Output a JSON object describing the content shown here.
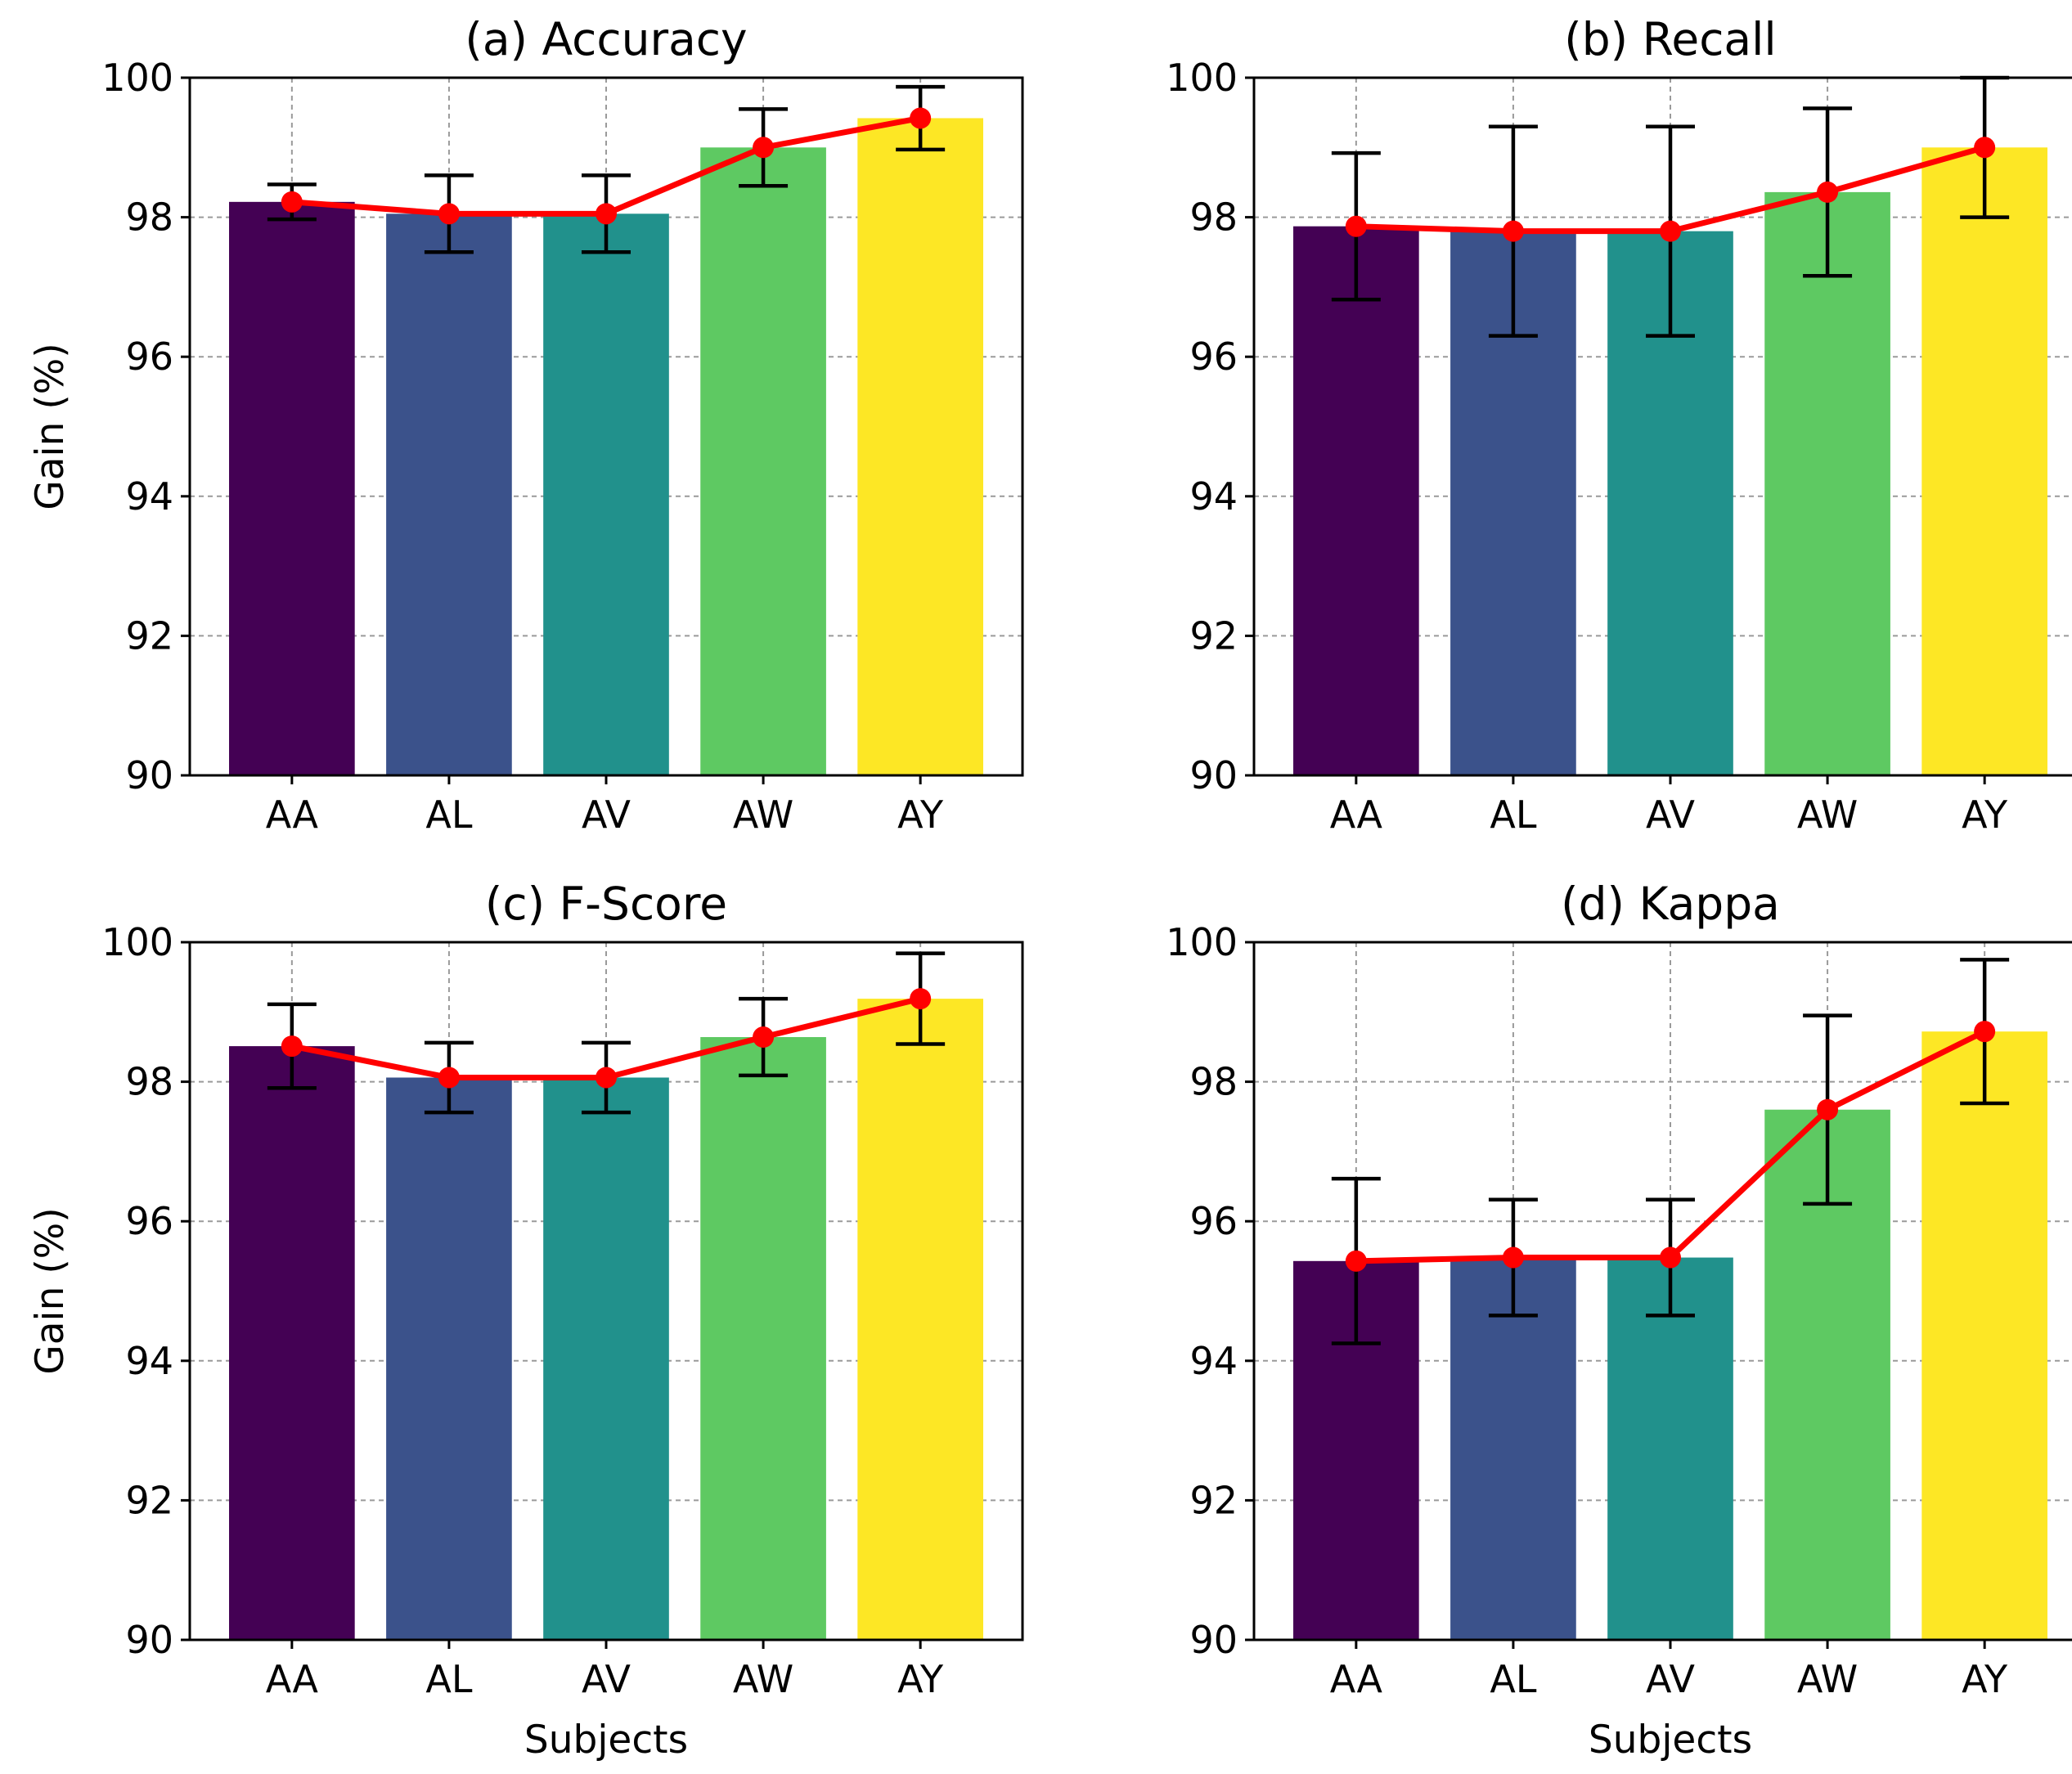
{
  "chart_data": [
    {
      "type": "bar",
      "title": "(a) Accuracy",
      "xlabel": "",
      "ylabel": "Gain (%)",
      "ylim": [
        90,
        100
      ],
      "yticks": [
        90,
        92,
        94,
        96,
        98,
        100
      ],
      "categories": [
        "AA",
        "AL",
        "AV",
        "AW",
        "AY"
      ],
      "values": [
        98.22,
        98.05,
        98.05,
        99.0,
        99.42
      ],
      "error": [
        0.25,
        0.55,
        0.55,
        0.55,
        0.45
      ],
      "grid": true
    },
    {
      "type": "bar",
      "title": "(b) Recall",
      "xlabel": "",
      "ylabel": "",
      "ylim": [
        90,
        100
      ],
      "yticks": [
        90,
        92,
        94,
        96,
        98,
        100
      ],
      "categories": [
        "AA",
        "AL",
        "AV",
        "AW",
        "AY"
      ],
      "values": [
        97.87,
        97.8,
        97.8,
        98.36,
        99.0
      ],
      "error": [
        1.05,
        1.5,
        1.5,
        1.2,
        1.0
      ],
      "grid": true
    },
    {
      "type": "bar",
      "title": "(c) F-Score",
      "xlabel": "Subjects",
      "ylabel": "Gain (%)",
      "ylim": [
        90,
        100
      ],
      "yticks": [
        90,
        92,
        94,
        96,
        98,
        100
      ],
      "categories": [
        "AA",
        "AL",
        "AV",
        "AW",
        "AY"
      ],
      "values": [
        98.51,
        98.06,
        98.06,
        98.64,
        99.19
      ],
      "error": [
        0.6,
        0.5,
        0.5,
        0.55,
        0.65
      ],
      "grid": true
    },
    {
      "type": "bar",
      "title": "(d) Kappa",
      "xlabel": "Subjects",
      "ylabel": "",
      "ylim": [
        90,
        100
      ],
      "yticks": [
        90,
        92,
        94,
        96,
        98,
        100
      ],
      "categories": [
        "AA",
        "AL",
        "AV",
        "AW",
        "AY"
      ],
      "values": [
        95.43,
        95.48,
        95.48,
        97.6,
        98.72
      ],
      "error": [
        1.18,
        0.83,
        0.83,
        1.35,
        1.03
      ],
      "grid": true
    }
  ],
  "colors": {
    "bars": [
      "#440154",
      "#3b528b",
      "#21918c",
      "#5ec962",
      "#fde725"
    ],
    "trend_line": "#ff0000",
    "error_bar": "#000000"
  }
}
